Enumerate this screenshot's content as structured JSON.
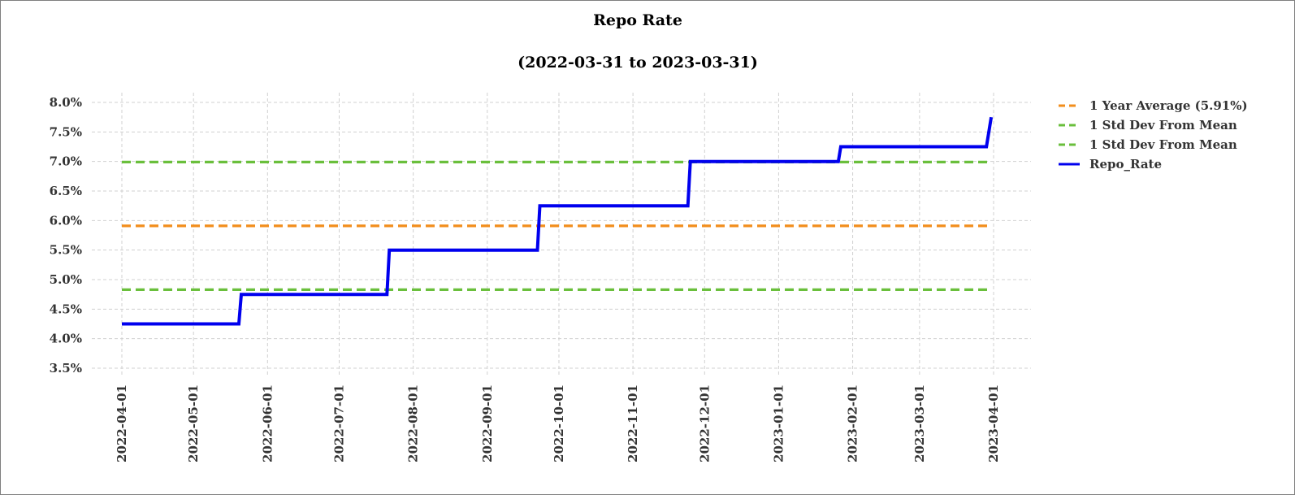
{
  "chart_data": {
    "type": "line",
    "title": "Repo Rate",
    "subtitle": "(2022-03-31 to 2023-03-31)",
    "xlabel": "",
    "ylabel": "",
    "x_range": [
      "2022-03-31",
      "2023-03-31"
    ],
    "ylim": [
      3.5,
      8.0
    ],
    "y_ticks": [
      3.5,
      4.0,
      4.5,
      5.0,
      5.5,
      6.0,
      6.5,
      7.0,
      7.5,
      8.0
    ],
    "y_tick_labels": [
      "3.5%",
      "4.0%",
      "4.5%",
      "5.0%",
      "5.5%",
      "6.0%",
      "6.5%",
      "7.0%",
      "7.5%",
      "8.0%"
    ],
    "x_ticks": [
      "2022-04-01",
      "2022-05-01",
      "2022-06-01",
      "2022-07-01",
      "2022-08-01",
      "2022-09-01",
      "2022-10-01",
      "2022-11-01",
      "2022-12-01",
      "2023-01-01",
      "2023-02-01",
      "2023-03-01",
      "2023-04-01"
    ],
    "grid": true,
    "legend_position": "right",
    "series": [
      {
        "name": "1 Year Average (5.91%)",
        "style": "dashed",
        "color": "#f28e1c",
        "x": [
          "2022-04-01",
          "2023-03-31"
        ],
        "y": [
          5.91,
          5.91
        ]
      },
      {
        "name": "1 Std Dev From Mean",
        "style": "dashed",
        "color": "#6abf3c",
        "x": [
          "2022-04-01",
          "2023-03-31"
        ],
        "y": [
          6.99,
          6.99
        ]
      },
      {
        "name": "1 Std Dev From Mean",
        "style": "dashed",
        "color": "#6abf3c",
        "x": [
          "2022-04-01",
          "2023-03-31"
        ],
        "y": [
          4.83,
          4.83
        ]
      },
      {
        "name": "Repo_Rate",
        "style": "step",
        "color": "#0000ee",
        "x": [
          "2022-04-01",
          "2022-05-20",
          "2022-05-21",
          "2022-07-21",
          "2022-07-22",
          "2022-09-22",
          "2022-09-23",
          "2022-11-24",
          "2022-11-25",
          "2023-01-26",
          "2023-01-27",
          "2023-03-29",
          "2023-03-31"
        ],
        "y": [
          4.25,
          4.25,
          4.75,
          4.75,
          5.5,
          5.5,
          6.25,
          6.25,
          7.0,
          7.0,
          7.25,
          7.25,
          7.75
        ]
      }
    ]
  }
}
